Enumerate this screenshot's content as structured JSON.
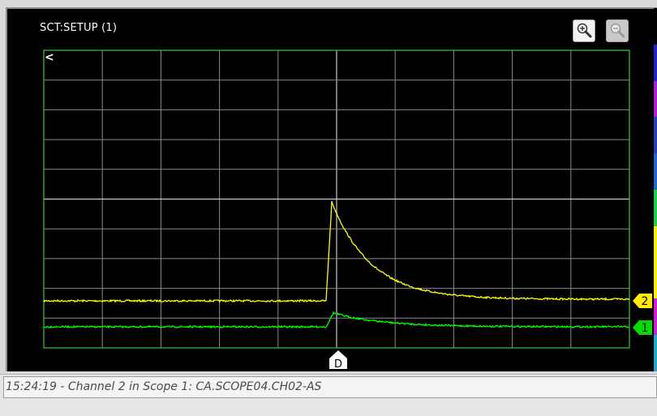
{
  "scope": {
    "title": "SCT:SETUP (1)",
    "trigger_marker": "D",
    "cursor_marker": "<",
    "grid": {
      "divisions_x": 10,
      "divisions_y": 10,
      "grid_color": "#8a8a8a",
      "border_color": "#33cc33"
    },
    "channels": [
      {
        "id": "2",
        "color": "#ffff00",
        "marker_color": "#ffee00",
        "label_color": "#000000"
      },
      {
        "id": "1",
        "color": "#00ff00",
        "marker_color": "#00dd00",
        "label_color": "#000000"
      }
    ],
    "toolbar": {
      "zoom_in_icon": "zoom-in-icon",
      "zoom_out_icon": "zoom-out-icon"
    }
  },
  "status": {
    "text": "15:24:19 - Channel 2 in Scope 1: CA.SCOPE04.CH02-AS"
  },
  "side_colors": [
    "#000000",
    "#2222cc",
    "#aa22cc",
    "#2244aa",
    "#2266cc",
    "#22cc44",
    "#ffee00",
    "#ffee00",
    "#cc22cc",
    "#22aacc"
  ]
}
